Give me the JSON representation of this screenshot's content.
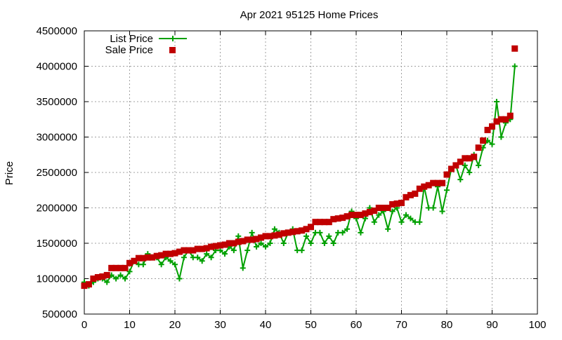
{
  "chart_data": {
    "type": "line",
    "title": "Apr 2021 95125 Home Prices",
    "xlabel": "",
    "ylabel": "Price",
    "xlim": [
      0,
      100
    ],
    "ylim": [
      500000,
      4500000
    ],
    "x_ticks": [
      "0",
      "10",
      "20",
      "30",
      "40",
      "50",
      "60",
      "70",
      "80",
      "90",
      "100"
    ],
    "y_ticks": [
      "500000",
      "1000000",
      "1500000",
      "2000000",
      "2500000",
      "3000000",
      "3500000",
      "4000000",
      "4500000"
    ],
    "grid": true,
    "legend_position": "top-left",
    "series": [
      {
        "name": "List Price",
        "style": "line-points",
        "color": "#00a000",
        "x": [
          0,
          1,
          2,
          3,
          4,
          5,
          6,
          7,
          8,
          9,
          10,
          11,
          12,
          13,
          14,
          15,
          16,
          17,
          18,
          19,
          20,
          21,
          22,
          23,
          24,
          25,
          26,
          27,
          28,
          29,
          30,
          31,
          32,
          33,
          34,
          35,
          36,
          37,
          38,
          39,
          40,
          41,
          42,
          43,
          44,
          45,
          46,
          47,
          48,
          49,
          50,
          51,
          52,
          53,
          54,
          55,
          56,
          57,
          58,
          59,
          60,
          61,
          62,
          63,
          64,
          65,
          66,
          67,
          68,
          69,
          70,
          71,
          72,
          73,
          74,
          75,
          76,
          77,
          78,
          79,
          80,
          81,
          82,
          83,
          84,
          85,
          86,
          87,
          88,
          89,
          90,
          91,
          92,
          93,
          94,
          95
        ],
        "values": [
          950000,
          900000,
          950000,
          1000000,
          1000000,
          950000,
          1050000,
          1000000,
          1050000,
          1000000,
          1100000,
          1250000,
          1200000,
          1200000,
          1350000,
          1300000,
          1300000,
          1200000,
          1300000,
          1250000,
          1200000,
          1000000,
          1300000,
          1400000,
          1300000,
          1300000,
          1250000,
          1350000,
          1300000,
          1400000,
          1400000,
          1350000,
          1450000,
          1400000,
          1600000,
          1150000,
          1400000,
          1650000,
          1450000,
          1500000,
          1450000,
          1500000,
          1700000,
          1650000,
          1500000,
          1650000,
          1700000,
          1400000,
          1400000,
          1600000,
          1500000,
          1650000,
          1650000,
          1500000,
          1600000,
          1500000,
          1650000,
          1650000,
          1700000,
          1950000,
          1850000,
          1650000,
          1850000,
          2000000,
          1800000,
          1900000,
          1950000,
          1700000,
          1950000,
          2000000,
          1800000,
          1900000,
          1850000,
          1800000,
          1800000,
          2300000,
          2000000,
          2000000,
          2300000,
          1950000,
          2250000,
          2550000,
          2600000,
          2400000,
          2600000,
          2500000,
          2750000,
          2600000,
          2850000,
          2950000,
          2900000,
          3500000,
          3000000,
          3200000,
          3250000,
          4000000
        ]
      },
      {
        "name": "Sale Price",
        "style": "points",
        "color": "#c00000",
        "x": [
          0,
          1,
          2,
          3,
          4,
          5,
          6,
          7,
          8,
          9,
          10,
          11,
          12,
          13,
          14,
          15,
          16,
          17,
          18,
          19,
          20,
          21,
          22,
          23,
          24,
          25,
          26,
          27,
          28,
          29,
          30,
          31,
          32,
          33,
          34,
          35,
          36,
          37,
          38,
          39,
          40,
          41,
          42,
          43,
          44,
          45,
          46,
          47,
          48,
          49,
          50,
          51,
          52,
          53,
          54,
          55,
          56,
          57,
          58,
          59,
          60,
          61,
          62,
          63,
          64,
          65,
          66,
          67,
          68,
          69,
          70,
          71,
          72,
          73,
          74,
          75,
          76,
          77,
          78,
          79,
          80,
          81,
          82,
          83,
          84,
          85,
          86,
          87,
          88,
          89,
          90,
          91,
          92,
          93,
          94,
          95
        ],
        "values": [
          900000,
          920000,
          1000000,
          1020000,
          1030000,
          1050000,
          1150000,
          1150000,
          1150000,
          1150000,
          1220000,
          1250000,
          1290000,
          1290000,
          1300000,
          1300000,
          1320000,
          1330000,
          1350000,
          1350000,
          1360000,
          1380000,
          1400000,
          1400000,
          1400000,
          1420000,
          1420000,
          1430000,
          1450000,
          1460000,
          1470000,
          1480000,
          1500000,
          1500000,
          1520000,
          1530000,
          1550000,
          1550000,
          1560000,
          1580000,
          1600000,
          1600000,
          1610000,
          1620000,
          1640000,
          1650000,
          1660000,
          1670000,
          1680000,
          1700000,
          1730000,
          1800000,
          1800000,
          1800000,
          1800000,
          1840000,
          1850000,
          1860000,
          1880000,
          1900000,
          1900000,
          1900000,
          1920000,
          1940000,
          1960000,
          2000000,
          2000000,
          2000000,
          2050000,
          2060000,
          2070000,
          2150000,
          2180000,
          2200000,
          2270000,
          2300000,
          2320000,
          2350000,
          2350000,
          2350000,
          2470000,
          2550000,
          2600000,
          2650000,
          2700000,
          2700000,
          2720000,
          2850000,
          2950000,
          3100000,
          3150000,
          3220000,
          3250000,
          3250000,
          3300000,
          4250000
        ]
      }
    ]
  }
}
